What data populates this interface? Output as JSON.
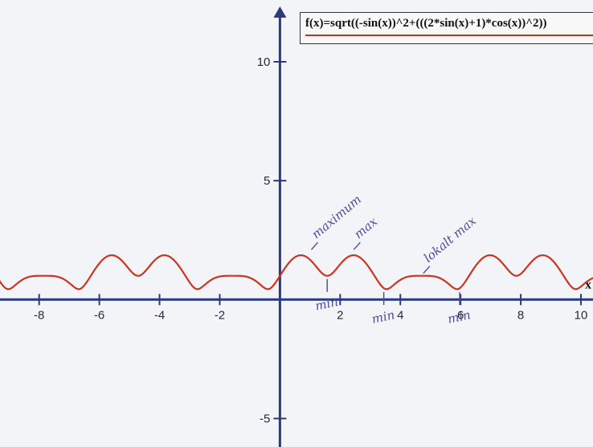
{
  "colors": {
    "background": "#f3f4f7",
    "axis": "#2b3a7e",
    "curve": "#cc3322",
    "annotation": "#4a4a9c"
  },
  "legend": {
    "formula": "f(x)=sqrt((-sin(x))^2+(((2*sin(x)+1)*cos(x))^2))"
  },
  "chart_data": {
    "type": "line",
    "xlim": [
      -9.3,
      10.4
    ],
    "ylim": [
      -6.2,
      12.6
    ],
    "x_ticks": [
      -8,
      -6,
      -4,
      -2,
      2,
      4,
      6,
      8,
      10
    ],
    "x_tick_labels": [
      "-8",
      "-6",
      "-4",
      "-2",
      "2",
      "4",
      "6",
      "8",
      "10"
    ],
    "y_ticks": [
      10,
      5,
      -5
    ],
    "y_tick_labels": [
      "10",
      "5",
      "-5"
    ],
    "x_axis_name": "x",
    "grid": false,
    "series": [
      {
        "function": "sqrt((-sin(x))^2+(((2*sin(x)+1)*cos(x))^2))",
        "x_range": [
          -9.4,
          10.5
        ]
      }
    ],
    "annotations": [
      {
        "text": "maximum",
        "x": 0.99,
        "y": 2.0
      },
      {
        "text": "max",
        "x": 2.4,
        "y": 2.0
      },
      {
        "text": "lokalt max",
        "x": 4.71,
        "y": 1.0
      },
      {
        "text": "min",
        "x": 1.57,
        "y": 1.0
      },
      {
        "text": "min",
        "x": 3.45,
        "y": 0.45
      },
      {
        "text": "min",
        "x": 5.97,
        "y": 0.45
      }
    ]
  }
}
